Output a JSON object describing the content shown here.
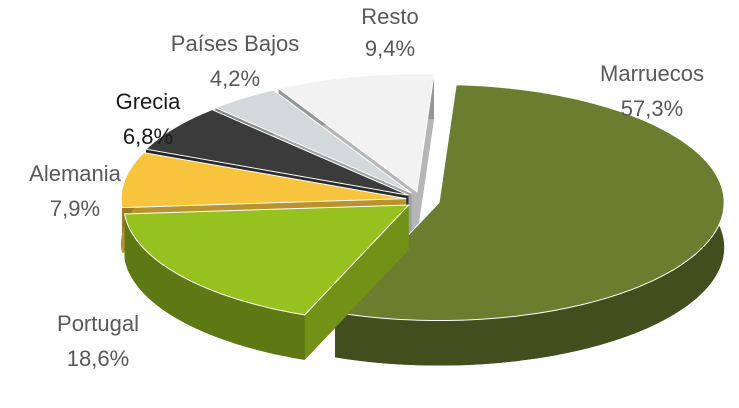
{
  "chart_data": {
    "type": "pie3d",
    "categories": [
      "Marruecos",
      "Portugal",
      "Alemania",
      "Grecia",
      "Países Bajos",
      "Resto"
    ],
    "values": [
      57.3,
      18.6,
      7.9,
      6.8,
      4.2,
      9.4
    ],
    "value_labels": [
      "57,3%",
      "18,6%",
      "7,9%",
      "6,8%",
      "4,2%",
      "9,4%"
    ],
    "colors": [
      "#6b7d2f",
      "#97c11f",
      "#f8c43e",
      "#3b3b3b",
      "#d3d9da",
      "#f2f2f2"
    ]
  }
}
